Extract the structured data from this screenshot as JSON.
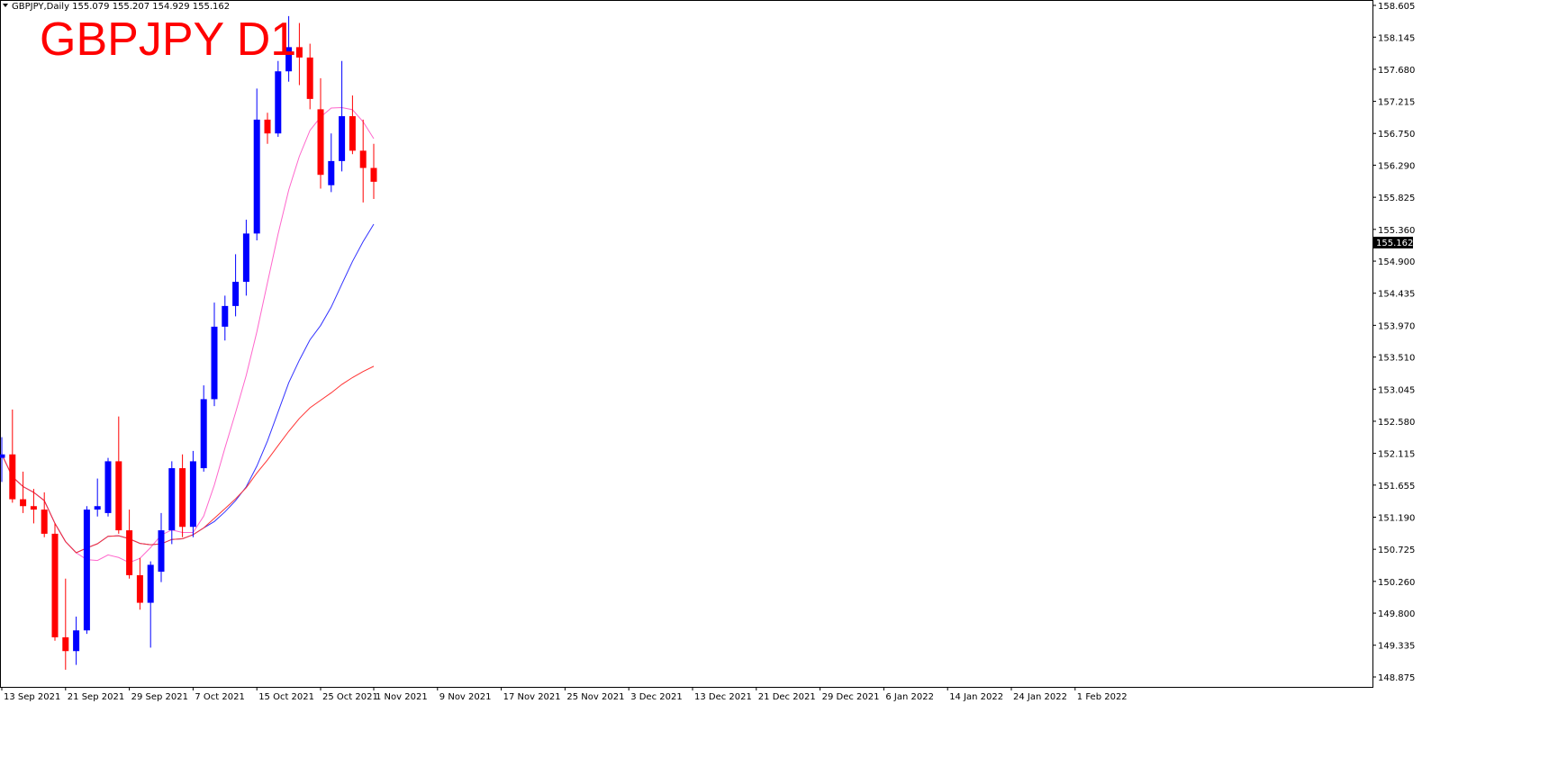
{
  "header": {
    "symbol_info": "GBPJPY,Daily  155.079 155.207 154.929 155.162",
    "annotation_title": "GBPJPY D1"
  },
  "colors": {
    "bull": "#0000ff",
    "bear": "#ff0000",
    "ma_fast": "#ff66cc",
    "ma_mid": "#3333ff",
    "ma_slow": "#ff3333",
    "annotation": "#e0101a",
    "axis": "#000000"
  },
  "chart_data": {
    "type": "candlestick",
    "y_ticks": [
      "158.605",
      "158.145",
      "157.680",
      "157.215",
      "156.750",
      "156.290",
      "155.825",
      "155.360",
      "154.900",
      "154.435",
      "153.970",
      "153.510",
      "153.045",
      "152.580",
      "152.115",
      "151.655",
      "151.190",
      "150.725",
      "150.260",
      "149.800",
      "149.335",
      "148.875"
    ],
    "ylim": [
      148.875,
      158.605
    ],
    "x_ticks": [
      {
        "label": "13 Sep 2021",
        "index": 0
      },
      {
        "label": "21 Sep 2021",
        "index": 6
      },
      {
        "label": "29 Sep 2021",
        "index": 12
      },
      {
        "label": "7 Oct 2021",
        "index": 18
      },
      {
        "label": "15 Oct 2021",
        "index": 24
      },
      {
        "label": "25 Oct 2021",
        "index": 30
      },
      {
        "label": "1 Nov 2021",
        "index": 35
      },
      {
        "label": "9 Nov 2021",
        "index": 41
      },
      {
        "label": "17 Nov 2021",
        "index": 47
      },
      {
        "label": "25 Nov 2021",
        "index": 53
      },
      {
        "label": "3 Dec 2021",
        "index": 59
      },
      {
        "label": "13 Dec 2021",
        "index": 65
      },
      {
        "label": "21 Dec 2021",
        "index": 71
      },
      {
        "label": "29 Dec 2021",
        "index": 77
      },
      {
        "label": "6 Jan 2022",
        "index": 83
      },
      {
        "label": "14 Jan 2022",
        "index": 89
      },
      {
        "label": "24 Jan 2022",
        "index": 95
      },
      {
        "label": "1 Feb 2022",
        "index": 101
      }
    ],
    "last_price": "155.162",
    "candles": [
      {
        "o": 152.05,
        "h": 152.35,
        "l": 151.7,
        "c": 152.1
      },
      {
        "o": 152.1,
        "h": 152.75,
        "l": 151.4,
        "c": 151.45
      },
      {
        "o": 151.45,
        "h": 151.85,
        "l": 151.25,
        "c": 151.35
      },
      {
        "o": 151.35,
        "h": 151.6,
        "l": 151.1,
        "c": 151.3
      },
      {
        "o": 151.3,
        "h": 151.55,
        "l": 150.9,
        "c": 150.95
      },
      {
        "o": 150.95,
        "h": 151.1,
        "l": 149.4,
        "c": 149.45
      },
      {
        "o": 149.45,
        "h": 150.3,
        "l": 148.98,
        "c": 149.25
      },
      {
        "o": 149.25,
        "h": 149.75,
        "l": 149.05,
        "c": 149.55
      },
      {
        "o": 149.55,
        "h": 151.35,
        "l": 149.5,
        "c": 151.3
      },
      {
        "o": 151.3,
        "h": 151.75,
        "l": 151.2,
        "c": 151.35
      },
      {
        "o": 151.25,
        "h": 152.05,
        "l": 151.2,
        "c": 152.0
      },
      {
        "o": 152.0,
        "h": 152.65,
        "l": 150.95,
        "c": 151.0
      },
      {
        "o": 151.0,
        "h": 151.3,
        "l": 150.3,
        "c": 150.35
      },
      {
        "o": 150.35,
        "h": 150.6,
        "l": 149.85,
        "c": 149.95
      },
      {
        "o": 149.95,
        "h": 150.55,
        "l": 149.3,
        "c": 150.5
      },
      {
        "o": 150.4,
        "h": 151.25,
        "l": 150.25,
        "c": 151.0
      },
      {
        "o": 151.0,
        "h": 152.0,
        "l": 150.8,
        "c": 151.9
      },
      {
        "o": 151.9,
        "h": 152.1,
        "l": 150.9,
        "c": 151.05
      },
      {
        "o": 151.05,
        "h": 152.15,
        "l": 150.9,
        "c": 152.0
      },
      {
        "o": 151.9,
        "h": 153.1,
        "l": 151.85,
        "c": 152.9
      },
      {
        "o": 152.9,
        "h": 154.3,
        "l": 152.8,
        "c": 153.95
      },
      {
        "o": 153.95,
        "h": 154.4,
        "l": 153.75,
        "c": 154.25
      },
      {
        "o": 154.25,
        "h": 155.0,
        "l": 154.1,
        "c": 154.6
      },
      {
        "o": 154.6,
        "h": 155.5,
        "l": 154.4,
        "c": 155.3
      },
      {
        "o": 155.3,
        "h": 157.4,
        "l": 155.2,
        "c": 156.95
      },
      {
        "o": 156.95,
        "h": 157.05,
        "l": 156.6,
        "c": 156.75
      },
      {
        "o": 156.75,
        "h": 157.8,
        "l": 156.7,
        "c": 157.65
      },
      {
        "o": 157.65,
        "h": 158.45,
        "l": 157.5,
        "c": 158.0
      },
      {
        "o": 158.0,
        "h": 158.35,
        "l": 157.45,
        "c": 157.85
      },
      {
        "o": 157.85,
        "h": 158.05,
        "l": 157.1,
        "c": 157.25
      },
      {
        "o": 157.1,
        "h": 157.55,
        "l": 155.95,
        "c": 156.15
      },
      {
        "o": 156.0,
        "h": 156.75,
        "l": 155.9,
        "c": 156.35
      },
      {
        "o": 156.35,
        "h": 157.8,
        "l": 156.2,
        "c": 157.0
      },
      {
        "o": 157.0,
        "h": 157.3,
        "l": 156.45,
        "c": 156.5
      },
      {
        "o": 156.5,
        "h": 156.95,
        "l": 155.75,
        "c": 156.25
      },
      {
        "o": 156.25,
        "h": 156.6,
        "l": 155.8,
        "c": 156.05
      }
    ]
  }
}
